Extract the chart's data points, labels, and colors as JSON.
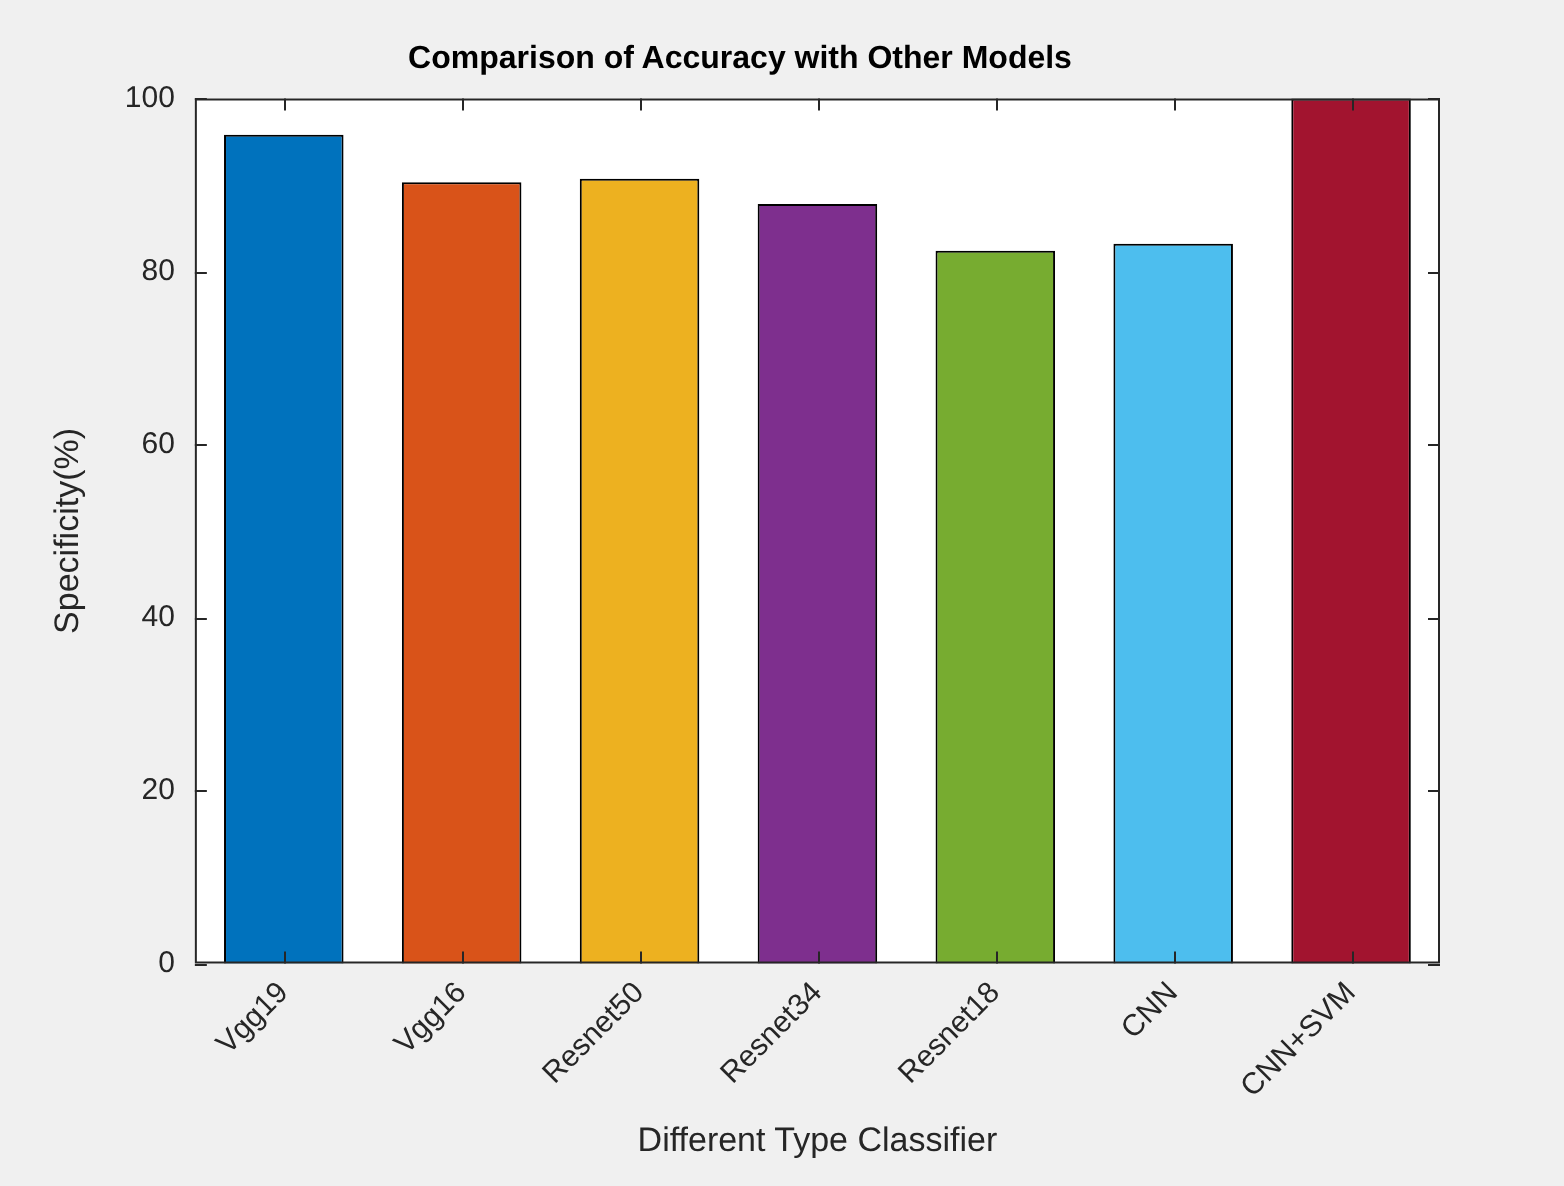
{
  "chart_data": {
    "type": "bar",
    "title": "Comparison of Accuracy with Other Models",
    "xlabel": "Different Type Classifier",
    "ylabel": "Specificity(%)",
    "categories": [
      "Vgg19",
      "Vgg16",
      "Resnet50",
      "Resnet34",
      "Resnet18",
      "CNN",
      "CNN+SVM"
    ],
    "values": [
      95.8,
      90.3,
      90.7,
      87.8,
      82.4,
      83.2,
      100
    ],
    "colors": [
      "#0072bd",
      "#d95319",
      "#edb120",
      "#7e2f8e",
      "#77ac30",
      "#4dbeee",
      "#a2142f"
    ],
    "ylim": [
      0,
      100
    ],
    "yticks": [
      0,
      20,
      40,
      60,
      80,
      100
    ],
    "grid": false,
    "legend": false
  }
}
